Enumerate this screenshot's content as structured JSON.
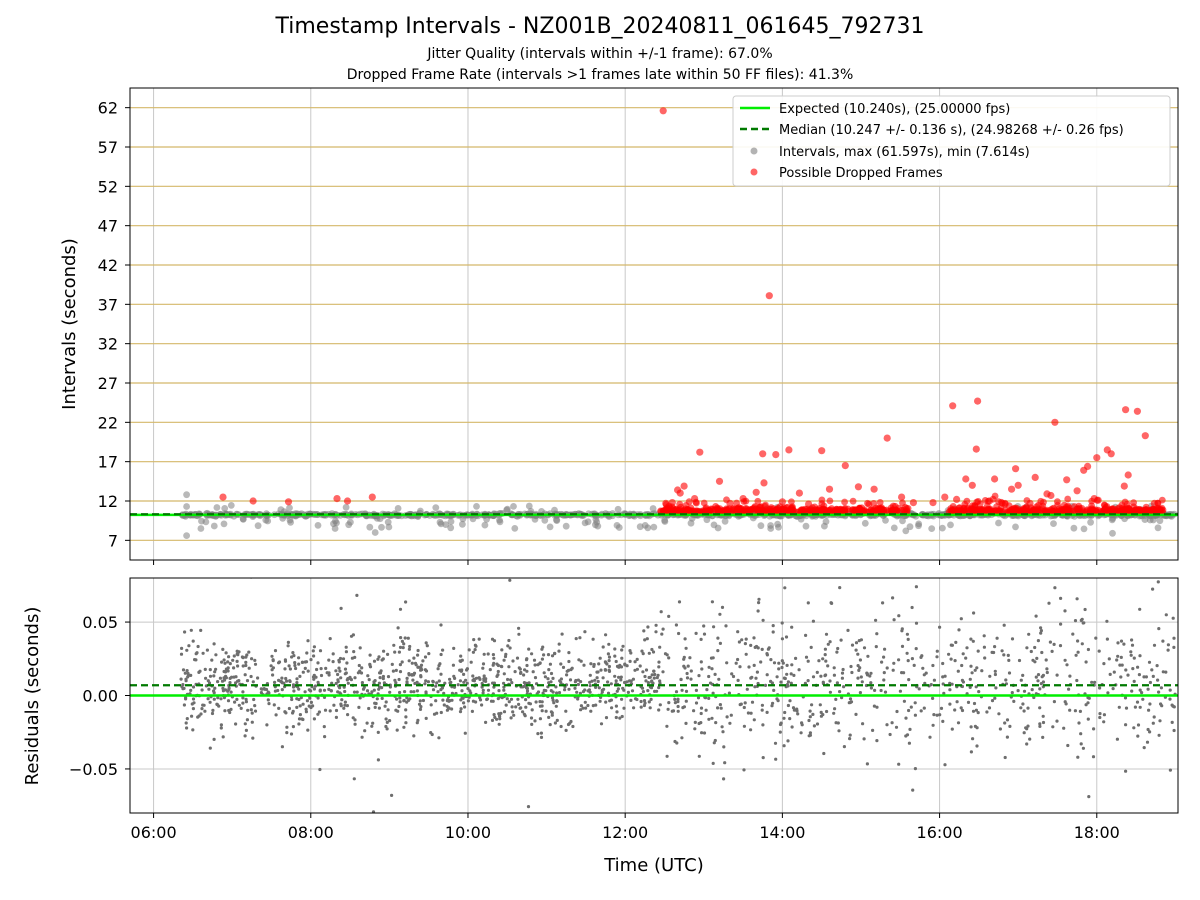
{
  "header": {
    "title": "Timestamp Intervals - NZ001B_20240811_061645_792731",
    "jitter": "Jitter Quality (intervals within +/-1 frame): 67.0%",
    "dropped": "Dropped Frame Rate (intervals >1 frames late within 50 FF files): 41.3%"
  },
  "colors": {
    "expected": "#00ee00",
    "median": "#007a00",
    "intervals": "#808080",
    "dropped": "#ff0000",
    "hgrid": "#d4b86a",
    "vgrid": "#c8c8c8",
    "residuals": "#6e6e6e"
  },
  "chart_data": [
    {
      "type": "scatter",
      "ylabel": "Intervals (seconds)",
      "ylim": [
        4.5,
        64.5
      ],
      "yticks": [
        7,
        12,
        17,
        22,
        27,
        32,
        37,
        42,
        47,
        52,
        57,
        62
      ],
      "grid": "on",
      "legend_position": "top-right",
      "expected_value": 10.24,
      "median_value": 10.247,
      "legend": [
        {
          "label": "Expected (10.240s), (25.00000 fps)",
          "style": "solid-line"
        },
        {
          "label": "Median (10.247 +/- 0.136 s), (24.98268 +/- 0.26 fps)",
          "style": "dashed-line"
        },
        {
          "label": "Intervals, max (61.597s), min (7.614s)",
          "style": "gray-dot"
        },
        {
          "label": "Possible Dropped Frames",
          "style": "red-dot"
        }
      ],
      "dropped_frames": [
        {
          "x": "12:29",
          "y": 61.6
        },
        {
          "x": "13:50",
          "y": 38.1
        },
        {
          "x": "16:10",
          "y": 24.1
        },
        {
          "x": "16:29",
          "y": 24.7
        },
        {
          "x": "18:22",
          "y": 23.6
        },
        {
          "x": "18:31",
          "y": 23.4
        },
        {
          "x": "17:28",
          "y": 22.0
        },
        {
          "x": "18:37",
          "y": 20.3
        },
        {
          "x": "15:20",
          "y": 20.0
        },
        {
          "x": "16:28",
          "y": 18.6
        },
        {
          "x": "14:05",
          "y": 18.5
        },
        {
          "x": "14:30",
          "y": 18.4
        },
        {
          "x": "18:08",
          "y": 18.5
        },
        {
          "x": "12:57",
          "y": 18.2
        },
        {
          "x": "13:45",
          "y": 18.0
        },
        {
          "x": "13:55",
          "y": 17.9
        },
        {
          "x": "18:11",
          "y": 18.0
        },
        {
          "x": "18:00",
          "y": 17.5
        },
        {
          "x": "14:48",
          "y": 16.5
        },
        {
          "x": "17:53",
          "y": 16.4
        },
        {
          "x": "16:58",
          "y": 16.1
        },
        {
          "x": "17:50",
          "y": 15.9
        },
        {
          "x": "18:24",
          "y": 15.3
        },
        {
          "x": "17:13",
          "y": 15.0
        },
        {
          "x": "16:20",
          "y": 14.8
        },
        {
          "x": "16:42",
          "y": 14.8
        },
        {
          "x": "17:37",
          "y": 14.7
        },
        {
          "x": "13:12",
          "y": 14.5
        },
        {
          "x": "16:25",
          "y": 14.0
        },
        {
          "x": "17:00",
          "y": 14.0
        },
        {
          "x": "12:45",
          "y": 13.9
        },
        {
          "x": "13:46",
          "y": 14.3
        },
        {
          "x": "14:58",
          "y": 13.8
        },
        {
          "x": "15:10",
          "y": 13.5
        },
        {
          "x": "18:21",
          "y": 13.9
        },
        {
          "x": "12:40",
          "y": 13.4
        },
        {
          "x": "16:55",
          "y": 13.5
        },
        {
          "x": "14:36",
          "y": 13.5
        },
        {
          "x": "17:45",
          "y": 13.3
        },
        {
          "x": "13:40",
          "y": 13.1
        },
        {
          "x": "12:42",
          "y": 13.0
        },
        {
          "x": "14:13",
          "y": 13.0
        },
        {
          "x": "17:22",
          "y": 12.9
        },
        {
          "x": "17:25",
          "y": 12.7
        },
        {
          "x": "06:53",
          "y": 12.5
        },
        {
          "x": "08:20",
          "y": 12.3
        },
        {
          "x": "08:47",
          "y": 12.5
        },
        {
          "x": "12:53",
          "y": 12.3
        },
        {
          "x": "13:30",
          "y": 12.3
        },
        {
          "x": "15:31",
          "y": 12.5
        },
        {
          "x": "16:04",
          "y": 12.5
        },
        {
          "x": "16:13",
          "y": 12.2
        },
        {
          "x": "17:58",
          "y": 12.3
        },
        {
          "x": "18:01",
          "y": 12.1
        },
        {
          "x": "07:16",
          "y": 12.0
        },
        {
          "x": "07:43",
          "y": 11.9
        },
        {
          "x": "08:28",
          "y": 12.0
        },
        {
          "x": "14:00",
          "y": 11.9
        },
        {
          "x": "15:40",
          "y": 11.8
        },
        {
          "x": "16:38",
          "y": 12.0
        },
        {
          "x": "17:09",
          "y": 11.7
        },
        {
          "x": "12:36",
          "y": 11.8
        },
        {
          "x": "13:20",
          "y": 11.7
        },
        {
          "x": "14:20",
          "y": 11.6
        },
        {
          "x": "18:44",
          "y": 11.7
        },
        {
          "x": "12:31",
          "y": 11.7
        },
        {
          "x": "15:55",
          "y": 11.8
        },
        {
          "x": "16:50",
          "y": 11.6
        }
      ]
    },
    {
      "type": "scatter",
      "ylabel": "Residuals (seconds)",
      "xlabel": "Time (UTC)",
      "ylim": [
        -0.08,
        0.08
      ],
      "yticks": [
        -0.05,
        0.0,
        0.05
      ],
      "ytick_labels": [
        "−0.05",
        "0.00",
        "0.05"
      ],
      "grid": "on",
      "expected_residual": 0.0,
      "median_residual": 0.007,
      "xlim": [
        "05:42",
        "19:02"
      ],
      "xticks": [
        "06:00",
        "08:00",
        "10:00",
        "12:00",
        "14:00",
        "16:00",
        "18:00"
      ]
    }
  ]
}
